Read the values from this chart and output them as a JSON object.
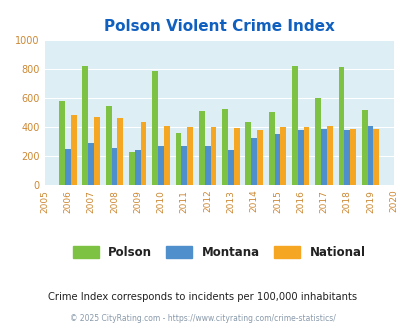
{
  "title": "Polson Violent Crime Index",
  "years": [
    2005,
    2006,
    2007,
    2008,
    2009,
    2010,
    2011,
    2012,
    2013,
    2014,
    2015,
    2016,
    2017,
    2018,
    2019,
    2020
  ],
  "polson": [
    null,
    580,
    820,
    545,
    228,
    785,
    355,
    505,
    525,
    435,
    498,
    820,
    600,
    808,
    515,
    null
  ],
  "montana": [
    null,
    248,
    290,
    255,
    238,
    270,
    270,
    270,
    238,
    325,
    352,
    375,
    385,
    380,
    408,
    null
  ],
  "national": [
    null,
    478,
    470,
    460,
    432,
    408,
    398,
    398,
    394,
    378,
    396,
    398,
    402,
    384,
    384,
    null
  ],
  "ylim": [
    0,
    1000
  ],
  "ylabel_ticks": [
    0,
    200,
    400,
    600,
    800,
    1000
  ],
  "bar_width": 0.25,
  "polson_color": "#7dc242",
  "montana_color": "#4f8fcc",
  "national_color": "#f5a623",
  "bg_color": "#ddeef5",
  "title_color": "#1060c0",
  "tick_color": "#cc8833",
  "subtitle": "Crime Index corresponds to incidents per 100,000 inhabitants",
  "footer": "© 2025 CityRating.com - https://www.cityrating.com/crime-statistics/",
  "subtitle_color": "#222222",
  "footer_color": "#8899aa",
  "legend_text_color": "#222222"
}
